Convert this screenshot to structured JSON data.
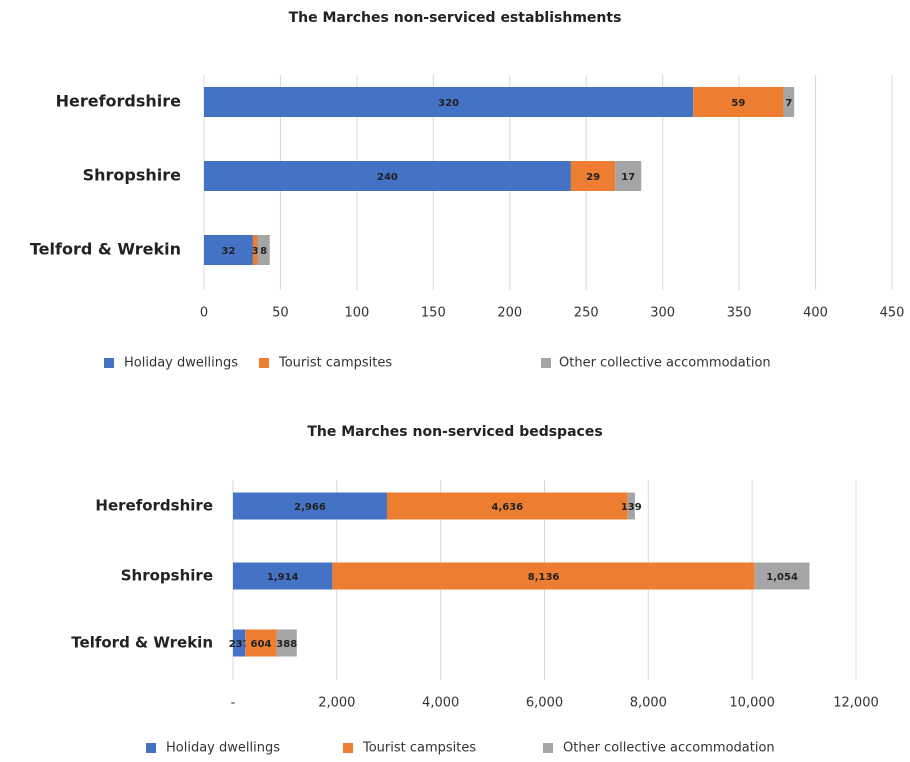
{
  "chart_data": [
    {
      "type": "stacked-bar",
      "orientation": "horizontal",
      "title": "The Marches non-serviced establishments",
      "categories": [
        "Herefordshire",
        "Shropshire",
        "Telford & Wrekin"
      ],
      "series": [
        {
          "name": "Holiday dwellings",
          "color": "#4472c4",
          "values": [
            320,
            240,
            32
          ]
        },
        {
          "name": "Tourist campsites",
          "color": "#ed7d31",
          "values": [
            59,
            29,
            3
          ]
        },
        {
          "name": "Other collective accommodation",
          "color": "#a5a5a5",
          "values": [
            7,
            17,
            8
          ]
        }
      ],
      "xlim": [
        0,
        450
      ],
      "xticks": [
        0,
        50,
        100,
        150,
        200,
        250,
        300,
        350,
        400,
        450
      ],
      "grid": true,
      "legend": "bottom"
    },
    {
      "type": "stacked-bar",
      "orientation": "horizontal",
      "title": "The Marches non-serviced bedspaces",
      "categories": [
        "Herefordshire",
        "Shropshire",
        "Telford & Wrekin"
      ],
      "series": [
        {
          "name": "Holiday dwellings",
          "color": "#4472c4",
          "values": [
            2966,
            1914,
            237
          ],
          "value_labels": [
            "2,966",
            "1,914",
            "237"
          ]
        },
        {
          "name": "Tourist campsites",
          "color": "#ed7d31",
          "values": [
            4636,
            8136,
            604
          ],
          "value_labels": [
            "4,636",
            "8,136",
            "604"
          ]
        },
        {
          "name": "Other collective accommodation",
          "color": "#a5a5a5",
          "values": [
            139,
            1054,
            388
          ],
          "value_labels": [
            "139",
            "1,054",
            "388"
          ]
        }
      ],
      "xlim": [
        0,
        12000
      ],
      "xticks": [
        {
          "value": 0,
          "label": "-"
        },
        {
          "value": 2000,
          "label": "2,000"
        },
        {
          "value": 4000,
          "label": "4,000"
        },
        {
          "value": 6000,
          "label": "6,000"
        },
        {
          "value": 8000,
          "label": "8,000"
        },
        {
          "value": 10000,
          "label": "10,000"
        },
        {
          "value": 12000,
          "label": "12,000"
        }
      ],
      "grid": true,
      "legend": "bottom"
    }
  ]
}
